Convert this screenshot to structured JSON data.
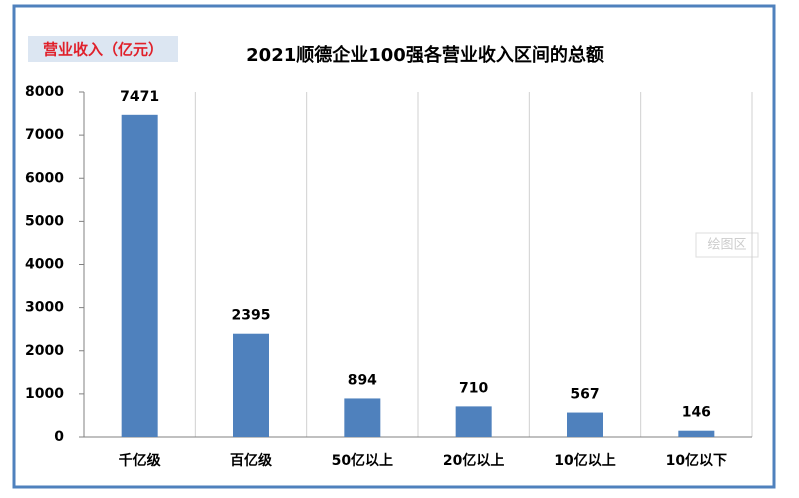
{
  "chart_data": {
    "type": "bar",
    "title": "2021顺德企业100强各营业收入区间的总额",
    "y_label": "营业收入（亿元）",
    "categories": [
      "千亿级",
      "百亿级",
      "50亿以上",
      "20亿以上",
      "10亿以上",
      "10亿以下"
    ],
    "values": [
      7471,
      2395,
      894,
      710,
      567,
      146
    ],
    "color": "#4f81bd",
    "ylim": [
      0,
      8000
    ],
    "yticks": [
      0,
      1000,
      2000,
      3000,
      4000,
      5000,
      6000,
      7000,
      8000
    ],
    "grid": false,
    "annotations": [
      "绘图区"
    ]
  }
}
